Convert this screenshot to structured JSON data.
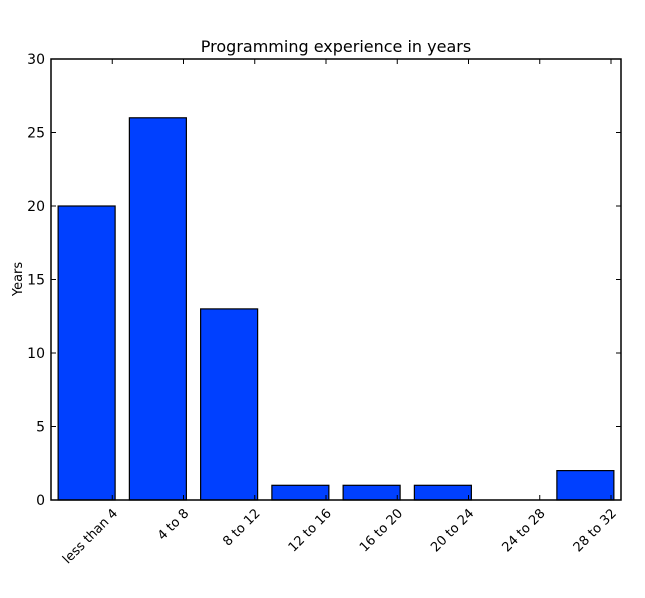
{
  "chart_data": {
    "type": "bar",
    "title": "Programming experience in years",
    "xlabel": "",
    "ylabel": "Years",
    "categories": [
      "less than 4",
      "4 to 8",
      "8 to 12",
      "12 to 16",
      "16 to 20",
      "20 to 24",
      "24 to 28",
      "28 to 32"
    ],
    "values": [
      20,
      26,
      13,
      1,
      1,
      1,
      0,
      2
    ],
    "ylim": [
      0,
      30
    ],
    "yticks": [
      0,
      5,
      10,
      15,
      20,
      25,
      30
    ],
    "grid": false,
    "bar_color": "#0040ff"
  }
}
